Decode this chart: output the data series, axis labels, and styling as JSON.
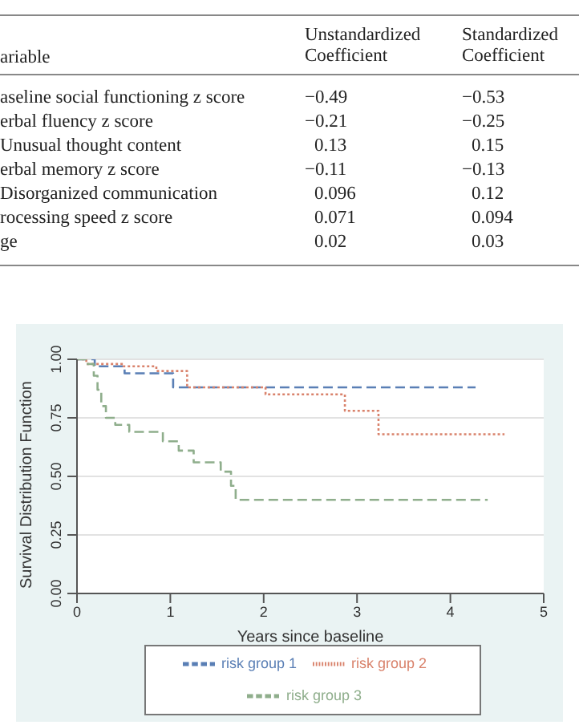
{
  "chart_data": [
    {
      "type": "other",
      "ylabel": "ariable",
      "categories": [
        "aseline social functioning z score",
        "erbal fluency z score",
        "Unusual thought content",
        "erbal memory z score",
        "Disorganized communication",
        "rocessing speed z score",
        "ge"
      ],
      "series": [
        {
          "name": "Unstandardized Coefficient",
          "values": [
            -0.49,
            -0.21,
            0.13,
            -0.11,
            0.096,
            0.071,
            0.02
          ],
          "value_labels": [
            "−0.49",
            "−0.21",
            "0.13",
            "−0.11",
            "0.096",
            "0.071",
            "0.02"
          ]
        },
        {
          "name": "Standardized Coefficient",
          "values": [
            -0.53,
            -0.25,
            0.15,
            -0.13,
            0.12,
            0.094,
            0.03
          ],
          "value_labels": [
            "−0.53",
            "−0.25",
            "0.15",
            "−0.13",
            "0.12",
            "0.094",
            "0.03"
          ]
        }
      ]
    },
    {
      "type": "step",
      "xlabel": "Years since baseline",
      "ylabel": "Survival Distribution Function",
      "xlim": [
        0,
        5
      ],
      "xticks": [
        0,
        1,
        2,
        3,
        4,
        5
      ],
      "ylim": [
        0,
        1
      ],
      "yticks": [
        {
          "value": 0,
          "label": "0.00"
        },
        {
          "value": 0.25,
          "label": "0.25"
        },
        {
          "value": 0.5,
          "label": "0.50"
        },
        {
          "value": 0.75,
          "label": "0.75"
        },
        {
          "value": 1,
          "label": "1.00"
        }
      ],
      "grid": "y",
      "legend": "bottom",
      "series": [
        {
          "name": "risk group 1",
          "color": "#5a7fb5",
          "line_style": "dashed",
          "x": [
            0,
            0.19,
            0.51,
            1.03,
            4.27
          ],
          "values": [
            1,
            0.97,
            0.94,
            0.88,
            0.88
          ]
        },
        {
          "name": "risk group 2",
          "color": "#d9826b",
          "line_style": "dotted",
          "x": [
            0,
            0.1,
            0.5,
            0.85,
            1.18,
            2.02,
            2.87,
            3.23,
            4.58
          ],
          "values": [
            1,
            0.98,
            0.97,
            0.95,
            0.88,
            0.85,
            0.78,
            0.68,
            0.68
          ]
        },
        {
          "name": "risk group 3",
          "color": "#8fae8c",
          "line_style": "dashed",
          "x": [
            0,
            0.1,
            0.18,
            0.22,
            0.26,
            0.31,
            0.41,
            0.56,
            0.92,
            1.09,
            1.25,
            1.54,
            1.65,
            1.7,
            4.4
          ],
          "values": [
            1,
            0.98,
            0.93,
            0.87,
            0.8,
            0.75,
            0.72,
            0.69,
            0.65,
            0.61,
            0.56,
            0.52,
            0.46,
            0.4,
            0.4
          ]
        }
      ]
    }
  ]
}
